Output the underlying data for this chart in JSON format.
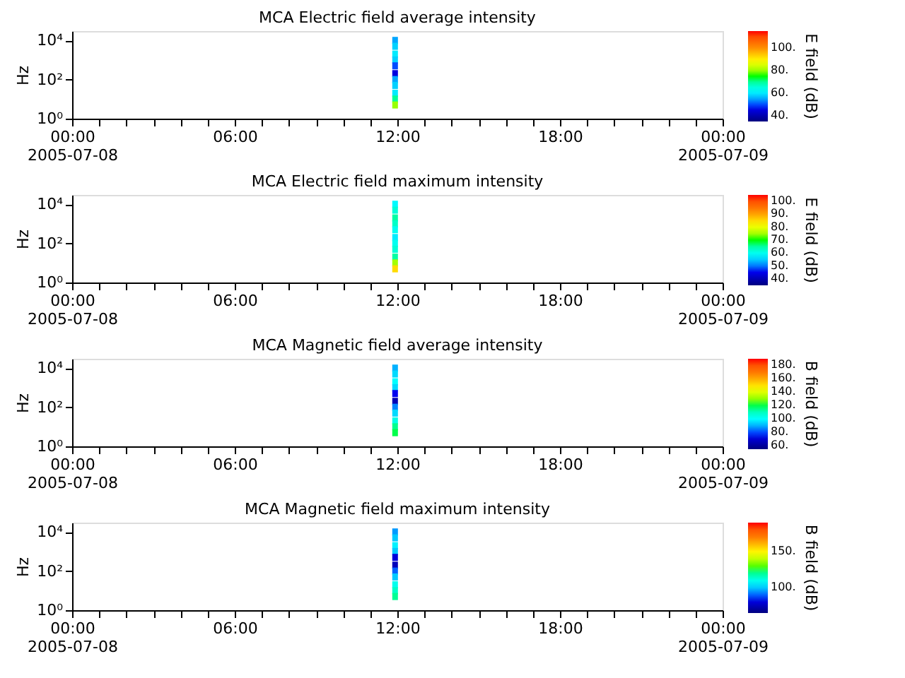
{
  "chart_data": [
    {
      "type": "scatter",
      "title": "MCA  Electric field average intensity",
      "ylabel": "Hz",
      "clabel": "E field (dB)",
      "marker": "square",
      "grid": false,
      "log": "y",
      "x": [
        "2005-07-08T11:55",
        "2005-07-08T11:55",
        "2005-07-08T11:55",
        "2005-07-08T11:55",
        "2005-07-08T11:55",
        "2005-07-08T11:55",
        "2005-07-08T11:55",
        "2005-07-08T11:55",
        "2005-07-08T11:55",
        "2005-07-08T11:55",
        "2005-07-08T11:55"
      ],
      "values": [
        10000,
        5000,
        2000,
        1000,
        500,
        200,
        100,
        50,
        20,
        10,
        5
      ],
      "cvalues": [
        55,
        58,
        60,
        58,
        50,
        45,
        55,
        58,
        60,
        70,
        80
      ],
      "xlim": [
        "2005-07-08T00:00",
        "2005-07-09T00:00"
      ],
      "xticks": [
        {
          "value": "2005-07-08T00:00",
          "label": "00:00\n2005-07-08"
        },
        {
          "value": "2005-07-08T01:00",
          "label": null
        },
        {
          "value": "2005-07-08T02:00",
          "label": null
        },
        {
          "value": "2005-07-08T03:00",
          "label": null
        },
        {
          "value": "2005-07-08T04:00",
          "label": null
        },
        {
          "value": "2005-07-08T05:00",
          "label": null
        },
        {
          "value": "2005-07-08T06:00",
          "label": "06:00"
        },
        {
          "value": "2005-07-08T07:00",
          "label": null
        },
        {
          "value": "2005-07-08T08:00",
          "label": null
        },
        {
          "value": "2005-07-08T09:00",
          "label": null
        },
        {
          "value": "2005-07-08T10:00",
          "label": null
        },
        {
          "value": "2005-07-08T11:00",
          "label": null
        },
        {
          "value": "2005-07-08T12:00",
          "label": "12:00"
        },
        {
          "value": "2005-07-08T13:00",
          "label": null
        },
        {
          "value": "2005-07-08T14:00",
          "label": null
        },
        {
          "value": "2005-07-08T15:00",
          "label": null
        },
        {
          "value": "2005-07-08T16:00",
          "label": null
        },
        {
          "value": "2005-07-08T17:00",
          "label": null
        },
        {
          "value": "2005-07-08T18:00",
          "label": "18:00"
        },
        {
          "value": "2005-07-08T19:00",
          "label": null
        },
        {
          "value": "2005-07-08T20:00",
          "label": null
        },
        {
          "value": "2005-07-08T21:00",
          "label": null
        },
        {
          "value": "2005-07-08T22:00",
          "label": null
        },
        {
          "value": "2005-07-08T23:00",
          "label": null
        },
        {
          "value": "2005-07-09T00:00",
          "label": "00:00\n2005-07-09"
        }
      ],
      "ylim": [
        1,
        30000
      ],
      "yticks": [
        {
          "value": 1,
          "label": "10⁰"
        },
        {
          "value": 100,
          "label": "10²"
        },
        {
          "value": 10000,
          "label": "10⁴"
        }
      ],
      "clim": [
        35,
        115
      ],
      "cticks": [
        {
          "value": 40,
          "label": "40."
        },
        {
          "value": 60,
          "label": "60."
        },
        {
          "value": 80,
          "label": "80."
        },
        {
          "value": 100,
          "label": "100."
        }
      ]
    },
    {
      "type": "scatter",
      "title": "MCA  Electric field maximum intensity",
      "ylabel": "Hz",
      "clabel": "E field (dB)",
      "marker": "square",
      "grid": false,
      "log": "y",
      "x": [
        "2005-07-08T11:55",
        "2005-07-08T11:55",
        "2005-07-08T11:55",
        "2005-07-08T11:55",
        "2005-07-08T11:55",
        "2005-07-08T11:55",
        "2005-07-08T11:55",
        "2005-07-08T11:55",
        "2005-07-08T11:55",
        "2005-07-08T11:55",
        "2005-07-08T11:55"
      ],
      "values": [
        10000,
        5000,
        2000,
        1000,
        500,
        200,
        100,
        50,
        20,
        10,
        5
      ],
      "cvalues": [
        58,
        62,
        65,
        63,
        60,
        57,
        60,
        62,
        65,
        75,
        85
      ],
      "xlim": [
        "2005-07-08T00:00",
        "2005-07-09T00:00"
      ],
      "xticks": [
        {
          "value": "2005-07-08T00:00",
          "label": "00:00\n2005-07-08"
        },
        {
          "value": "2005-07-08T01:00",
          "label": null
        },
        {
          "value": "2005-07-08T02:00",
          "label": null
        },
        {
          "value": "2005-07-08T03:00",
          "label": null
        },
        {
          "value": "2005-07-08T04:00",
          "label": null
        },
        {
          "value": "2005-07-08T05:00",
          "label": null
        },
        {
          "value": "2005-07-08T06:00",
          "label": "06:00"
        },
        {
          "value": "2005-07-08T07:00",
          "label": null
        },
        {
          "value": "2005-07-08T08:00",
          "label": null
        },
        {
          "value": "2005-07-08T09:00",
          "label": null
        },
        {
          "value": "2005-07-08T10:00",
          "label": null
        },
        {
          "value": "2005-07-08T11:00",
          "label": null
        },
        {
          "value": "2005-07-08T12:00",
          "label": "12:00"
        },
        {
          "value": "2005-07-08T13:00",
          "label": null
        },
        {
          "value": "2005-07-08T14:00",
          "label": null
        },
        {
          "value": "2005-07-08T15:00",
          "label": null
        },
        {
          "value": "2005-07-08T16:00",
          "label": null
        },
        {
          "value": "2005-07-08T17:00",
          "label": null
        },
        {
          "value": "2005-07-08T18:00",
          "label": "18:00"
        },
        {
          "value": "2005-07-08T19:00",
          "label": null
        },
        {
          "value": "2005-07-08T20:00",
          "label": null
        },
        {
          "value": "2005-07-08T21:00",
          "label": null
        },
        {
          "value": "2005-07-08T22:00",
          "label": null
        },
        {
          "value": "2005-07-08T23:00",
          "label": null
        },
        {
          "value": "2005-07-09T00:00",
          "label": "00:00\n2005-07-09"
        }
      ],
      "ylim": [
        1,
        30000
      ],
      "yticks": [
        {
          "value": 1,
          "label": "10⁰"
        },
        {
          "value": 100,
          "label": "10²"
        },
        {
          "value": 10000,
          "label": "10⁴"
        }
      ],
      "clim": [
        35,
        105
      ],
      "cticks": [
        {
          "value": 40,
          "label": "40."
        },
        {
          "value": 50,
          "label": "50."
        },
        {
          "value": 60,
          "label": "60."
        },
        {
          "value": 70,
          "label": "70."
        },
        {
          "value": 80,
          "label": "80."
        },
        {
          "value": 90,
          "label": "90."
        },
        {
          "value": 100,
          "label": "100."
        }
      ]
    },
    {
      "type": "scatter",
      "title": "MCA  Magnetic field average intensity",
      "ylabel": "Hz",
      "clabel": "B field (dB)",
      "marker": "square",
      "grid": false,
      "log": "y",
      "x": [
        "2005-07-08T11:55",
        "2005-07-08T11:55",
        "2005-07-08T11:55",
        "2005-07-08T11:55",
        "2005-07-08T11:55",
        "2005-07-08T11:55",
        "2005-07-08T11:55",
        "2005-07-08T11:55",
        "2005-07-08T11:55",
        "2005-07-08T11:55",
        "2005-07-08T11:55"
      ],
      "values": [
        10000,
        5000,
        2000,
        1000,
        500,
        200,
        100,
        50,
        20,
        10,
        5
      ],
      "cvalues": [
        90,
        95,
        100,
        95,
        75,
        65,
        85,
        95,
        105,
        115,
        120
      ],
      "xlim": [
        "2005-07-08T00:00",
        "2005-07-09T00:00"
      ],
      "xticks": [
        {
          "value": "2005-07-08T00:00",
          "label": "00:00\n2005-07-08"
        },
        {
          "value": "2005-07-08T01:00",
          "label": null
        },
        {
          "value": "2005-07-08T02:00",
          "label": null
        },
        {
          "value": "2005-07-08T03:00",
          "label": null
        },
        {
          "value": "2005-07-08T04:00",
          "label": null
        },
        {
          "value": "2005-07-08T05:00",
          "label": null
        },
        {
          "value": "2005-07-08T06:00",
          "label": "06:00"
        },
        {
          "value": "2005-07-08T07:00",
          "label": null
        },
        {
          "value": "2005-07-08T08:00",
          "label": null
        },
        {
          "value": "2005-07-08T09:00",
          "label": null
        },
        {
          "value": "2005-07-08T10:00",
          "label": null
        },
        {
          "value": "2005-07-08T11:00",
          "label": null
        },
        {
          "value": "2005-07-08T12:00",
          "label": "12:00"
        },
        {
          "value": "2005-07-08T13:00",
          "label": null
        },
        {
          "value": "2005-07-08T14:00",
          "label": null
        },
        {
          "value": "2005-07-08T15:00",
          "label": null
        },
        {
          "value": "2005-07-08T16:00",
          "label": null
        },
        {
          "value": "2005-07-08T17:00",
          "label": null
        },
        {
          "value": "2005-07-08T18:00",
          "label": "18:00"
        },
        {
          "value": "2005-07-08T19:00",
          "label": null
        },
        {
          "value": "2005-07-08T20:00",
          "label": null
        },
        {
          "value": "2005-07-08T21:00",
          "label": null
        },
        {
          "value": "2005-07-08T22:00",
          "label": null
        },
        {
          "value": "2005-07-08T23:00",
          "label": null
        },
        {
          "value": "2005-07-09T00:00",
          "label": "00:00\n2005-07-09"
        }
      ],
      "ylim": [
        1,
        30000
      ],
      "yticks": [
        {
          "value": 1,
          "label": "10⁰"
        },
        {
          "value": 100,
          "label": "10²"
        },
        {
          "value": 10000,
          "label": "10⁴"
        }
      ],
      "clim": [
        55,
        190
      ],
      "cticks": [
        {
          "value": 60,
          "label": "60."
        },
        {
          "value": 80,
          "label": "80."
        },
        {
          "value": 100,
          "label": "100."
        },
        {
          "value": 120,
          "label": "120."
        },
        {
          "value": 140,
          "label": "140."
        },
        {
          "value": 160,
          "label": "160."
        },
        {
          "value": 180,
          "label": "180."
        }
      ]
    },
    {
      "type": "scatter",
      "title": "MCA  Magnetic field maximum intensity",
      "ylabel": "Hz",
      "clabel": "B field (dB)",
      "marker": "square",
      "grid": false,
      "log": "y",
      "x": [
        "2005-07-08T11:55",
        "2005-07-08T11:55",
        "2005-07-08T11:55",
        "2005-07-08T11:55",
        "2005-07-08T11:55",
        "2005-07-08T11:55",
        "2005-07-08T11:55",
        "2005-07-08T11:55",
        "2005-07-08T11:55",
        "2005-07-08T11:55",
        "2005-07-08T11:55"
      ],
      "values": [
        10000,
        5000,
        2000,
        1000,
        500,
        200,
        100,
        50,
        20,
        10,
        5
      ],
      "cvalues": [
        95,
        100,
        105,
        100,
        80,
        75,
        90,
        100,
        110,
        115,
        120
      ],
      "xlim": [
        "2005-07-08T00:00",
        "2005-07-09T00:00"
      ],
      "xticks": [
        {
          "value": "2005-07-08T00:00",
          "label": "00:00\n2005-07-08"
        },
        {
          "value": "2005-07-08T01:00",
          "label": null
        },
        {
          "value": "2005-07-08T02:00",
          "label": null
        },
        {
          "value": "2005-07-08T03:00",
          "label": null
        },
        {
          "value": "2005-07-08T04:00",
          "label": null
        },
        {
          "value": "2005-07-08T05:00",
          "label": null
        },
        {
          "value": "2005-07-08T06:00",
          "label": "06:00"
        },
        {
          "value": "2005-07-08T07:00",
          "label": null
        },
        {
          "value": "2005-07-08T08:00",
          "label": null
        },
        {
          "value": "2005-07-08T09:00",
          "label": null
        },
        {
          "value": "2005-07-08T10:00",
          "label": null
        },
        {
          "value": "2005-07-08T11:00",
          "label": null
        },
        {
          "value": "2005-07-08T12:00",
          "label": "12:00"
        },
        {
          "value": "2005-07-08T13:00",
          "label": null
        },
        {
          "value": "2005-07-08T14:00",
          "label": null
        },
        {
          "value": "2005-07-08T15:00",
          "label": null
        },
        {
          "value": "2005-07-08T16:00",
          "label": null
        },
        {
          "value": "2005-07-08T17:00",
          "label": null
        },
        {
          "value": "2005-07-08T18:00",
          "label": "18:00"
        },
        {
          "value": "2005-07-08T19:00",
          "label": null
        },
        {
          "value": "2005-07-08T20:00",
          "label": null
        },
        {
          "value": "2005-07-08T21:00",
          "label": null
        },
        {
          "value": "2005-07-08T22:00",
          "label": null
        },
        {
          "value": "2005-07-08T23:00",
          "label": null
        },
        {
          "value": "2005-07-09T00:00",
          "label": "00:00\n2005-07-09"
        }
      ],
      "ylim": [
        1,
        30000
      ],
      "yticks": [
        {
          "value": 1,
          "label": "10⁰"
        },
        {
          "value": 100,
          "label": "10²"
        },
        {
          "value": 10000,
          "label": "10⁴"
        }
      ],
      "clim": [
        65,
        190
      ],
      "cticks": [
        {
          "value": 100,
          "label": "100."
        },
        {
          "value": 150,
          "label": "150."
        }
      ]
    }
  ]
}
